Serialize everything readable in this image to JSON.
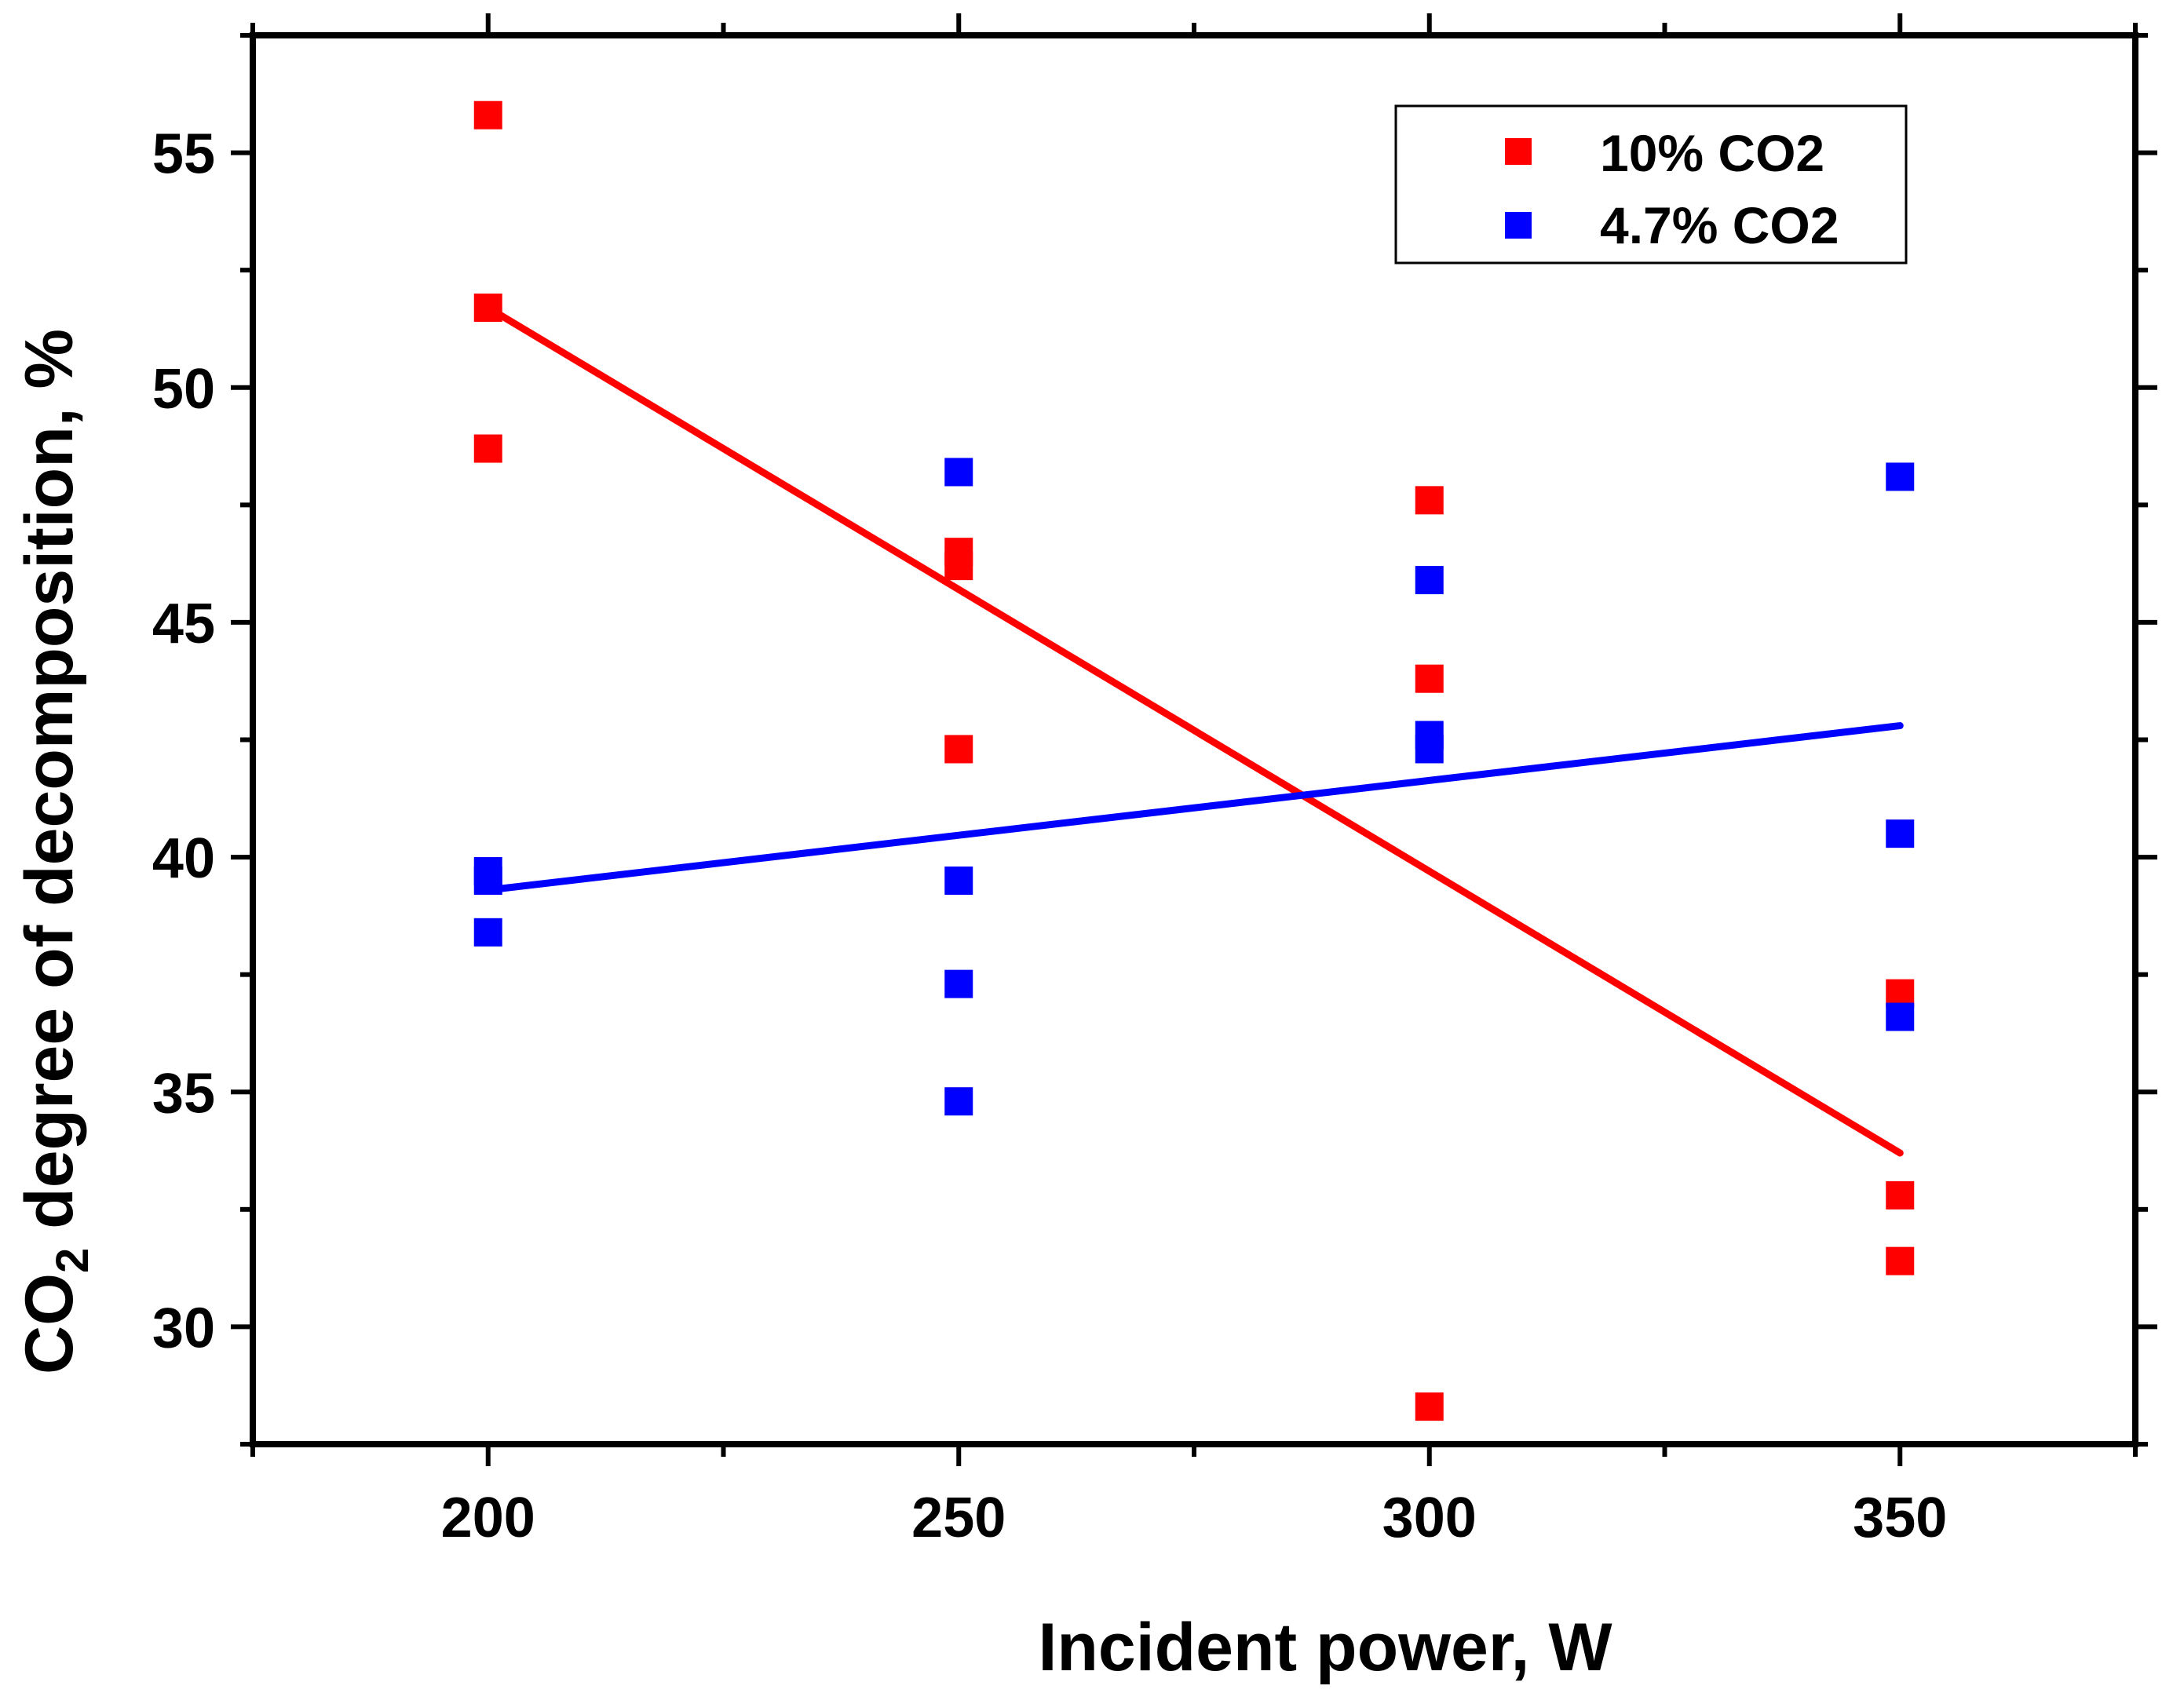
{
  "chart_data": {
    "type": "scatter",
    "xlabel": "Incident power, W",
    "ylabel": {
      "prefix": "CO",
      "subscript": "2",
      "suffix": " degree of decomposition, %"
    },
    "xlim": [
      175,
      375
    ],
    "ylim": [
      27.5,
      57.5
    ],
    "x_ticks": [
      200,
      250,
      300,
      350
    ],
    "y_ticks": [
      30,
      35,
      40,
      45,
      50,
      55
    ],
    "x_tick_labels": [
      "200",
      "250",
      "300",
      "350"
    ],
    "y_tick_labels": [
      "30",
      "35",
      "40",
      "45",
      "50",
      "55"
    ],
    "legend_position": "top-right",
    "grid": false,
    "series": [
      {
        "name": "10% CO2",
        "color": "#ff0000",
        "points": [
          [
            200,
            55.8
          ],
          [
            200,
            51.7
          ],
          [
            200,
            48.7
          ],
          [
            250,
            46.5
          ],
          [
            250,
            46.2
          ],
          [
            250,
            42.3
          ],
          [
            300,
            47.6
          ],
          [
            300,
            43.8
          ],
          [
            300,
            28.3
          ],
          [
            350,
            37.1
          ],
          [
            350,
            32.8
          ],
          [
            350,
            31.4
          ]
        ],
        "fit": [
          [
            200,
            51.7
          ],
          [
            350,
            33.7
          ]
        ]
      },
      {
        "name": "4.7% CO2",
        "color": "#0000ff",
        "points": [
          [
            200,
            39.7
          ],
          [
            200,
            39.5
          ],
          [
            200,
            38.4
          ],
          [
            250,
            48.2
          ],
          [
            250,
            39.5
          ],
          [
            250,
            37.3
          ],
          [
            250,
            34.8
          ],
          [
            300,
            45.9
          ],
          [
            300,
            42.6
          ],
          [
            300,
            42.3
          ],
          [
            350,
            48.1
          ],
          [
            350,
            40.5
          ],
          [
            350,
            36.6
          ]
        ],
        "fit": [
          [
            200,
            39.3
          ],
          [
            350,
            42.8
          ]
        ]
      }
    ]
  }
}
